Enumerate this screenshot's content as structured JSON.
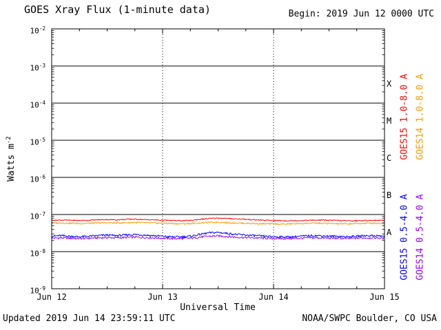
{
  "header": {
    "title": "GOES Xray Flux (1-minute data)",
    "begin_label": "Begin:",
    "begin_time": "2019 Jun 12 0000 UTC"
  },
  "footer": {
    "updated": "Updated 2019 Jun 14 23:59:11 UTC",
    "source": "NOAA/SWPC Boulder, CO USA"
  },
  "axes": {
    "x_label": "Universal Time",
    "y_label_base": "Watts m",
    "y_label_exp": "-2"
  },
  "legend": {
    "entries": [
      {
        "label": "GOES15 1.0-8.0 A",
        "color": "#ff0000",
        "column": 0,
        "row": 0
      },
      {
        "label": "GOES14 1.0-8.0 A",
        "color": "#ff9900",
        "column": 1,
        "row": 0
      },
      {
        "label": "GOES15 0.5-4.0 A",
        "color": "#0000ff",
        "column": 0,
        "row": 1
      },
      {
        "label": "GOES14 0.5-4.0 A",
        "color": "#9900ff",
        "column": 1,
        "row": 1
      }
    ]
  },
  "chart_data": {
    "type": "line",
    "title": "GOES Xray Flux (1-minute data)",
    "xlabel": "Universal Time",
    "ylabel": "Watts m^-2",
    "x_axis": {
      "unit": "hours from 2019 Jun 12 0000 UTC",
      "range": [
        0,
        72
      ],
      "major_tick_hours": 24,
      "minor_tick_hours": 6,
      "tick_labels": [
        {
          "hour": 0,
          "label": "Jun 12"
        },
        {
          "hour": 24,
          "label": "Jun 13"
        },
        {
          "hour": 48,
          "label": "Jun 14"
        },
        {
          "hour": 72,
          "label": "Jun 15"
        }
      ],
      "day_gridline_hours": [
        24,
        48
      ]
    },
    "y_axis": {
      "scale": "log10",
      "unit": "Watts m^-2",
      "range_exponents": [
        -9,
        -2
      ],
      "tick_exponents": [
        -2,
        -3,
        -4,
        -5,
        -6,
        -7,
        -8,
        -9
      ],
      "gridline_exponents": [
        -3,
        -4,
        -5,
        -6,
        -7,
        -8
      ]
    },
    "flare_class_labels": [
      {
        "label": "X",
        "center_exponent": -3.5
      },
      {
        "label": "M",
        "center_exponent": -4.5
      },
      {
        "label": "C",
        "center_exponent": -5.5
      },
      {
        "label": "B",
        "center_exponent": -6.5
      },
      {
        "label": "A",
        "center_exponent": -7.5
      }
    ],
    "series": [
      {
        "name": "GOES14 0.5-4.0 A",
        "color": "#9900ff",
        "noise": 0.06,
        "x_step_hours": 2,
        "values": [
          2.3e-08,
          2.35e-08,
          2.3e-08,
          2.25e-08,
          2.3e-08,
          2.35e-08,
          2.4e-08,
          2.35e-08,
          2.4e-08,
          2.45e-08,
          2.4e-08,
          2.35e-08,
          2.3e-08,
          2.25e-08,
          2.25e-08,
          2.3e-08,
          2.45e-08,
          2.6e-08,
          2.65e-08,
          2.55e-08,
          2.45e-08,
          2.4e-08,
          2.35e-08,
          2.3e-08,
          2.25e-08,
          2.25e-08,
          2.25e-08,
          2.3e-08,
          2.35e-08,
          2.35e-08,
          2.3e-08,
          2.3e-08,
          2.25e-08,
          2.3e-08,
          2.35e-08,
          2.35e-08,
          2.3e-08
        ]
      },
      {
        "name": "GOES15 0.5-4.0 A",
        "color": "#0000ff",
        "noise": 0.06,
        "x_step_hours": 2,
        "values": [
          2.6e-08,
          2.7e-08,
          2.6e-08,
          2.5e-08,
          2.6e-08,
          2.7e-08,
          2.8e-08,
          2.7e-08,
          2.8e-08,
          2.9e-08,
          2.8e-08,
          2.7e-08,
          2.6e-08,
          2.5e-08,
          2.5e-08,
          2.6e-08,
          2.9e-08,
          3.2e-08,
          3.3e-08,
          3.1e-08,
          2.9e-08,
          2.8e-08,
          2.7e-08,
          2.6e-08,
          2.5e-08,
          2.5e-08,
          2.5e-08,
          2.6e-08,
          2.7e-08,
          2.7e-08,
          2.6e-08,
          2.6e-08,
          2.5e-08,
          2.6e-08,
          2.7e-08,
          2.7e-08,
          2.6e-08
        ]
      },
      {
        "name": "GOES14 1.0-8.0 A",
        "color": "#ff9900",
        "noise": 0.04,
        "x_step_hours": 2,
        "values": [
          5.8e-08,
          5.9e-08,
          5.8e-08,
          5.7e-08,
          5.8e-08,
          5.9e-08,
          6e-08,
          5.9e-08,
          6e-08,
          6.1e-08,
          6e-08,
          5.9e-08,
          5.8e-08,
          5.7e-08,
          5.6e-08,
          5.7e-08,
          5.9e-08,
          6.1e-08,
          6.2e-08,
          6e-08,
          5.9e-08,
          5.8e-08,
          5.7e-08,
          5.6e-08,
          5.6e-08,
          5.5e-08,
          5.6e-08,
          5.7e-08,
          5.8e-08,
          5.8e-08,
          5.7e-08,
          5.6e-08,
          5.6e-08,
          5.7e-08,
          5.8e-08,
          5.8e-08,
          5.7e-08
        ]
      },
      {
        "name": "GOES15 1.0-8.0 A",
        "color": "#ff0000",
        "noise": 0.03,
        "x_step_hours": 2,
        "values": [
          7e-08,
          7.1e-08,
          7e-08,
          6.9e-08,
          7e-08,
          7.2e-08,
          7.3e-08,
          7.2e-08,
          7.4e-08,
          7.5e-08,
          7.3e-08,
          7.2e-08,
          7e-08,
          6.9e-08,
          6.8e-08,
          6.9e-08,
          7.4e-08,
          7.8e-08,
          8e-08,
          7.8e-08,
          7.6e-08,
          7.4e-08,
          7.2e-08,
          7e-08,
          6.9e-08,
          6.8e-08,
          6.8e-08,
          6.9e-08,
          7e-08,
          7.1e-08,
          7e-08,
          6.9e-08,
          6.8e-08,
          6.8e-08,
          6.9e-08,
          7e-08,
          6.9e-08
        ]
      }
    ]
  }
}
